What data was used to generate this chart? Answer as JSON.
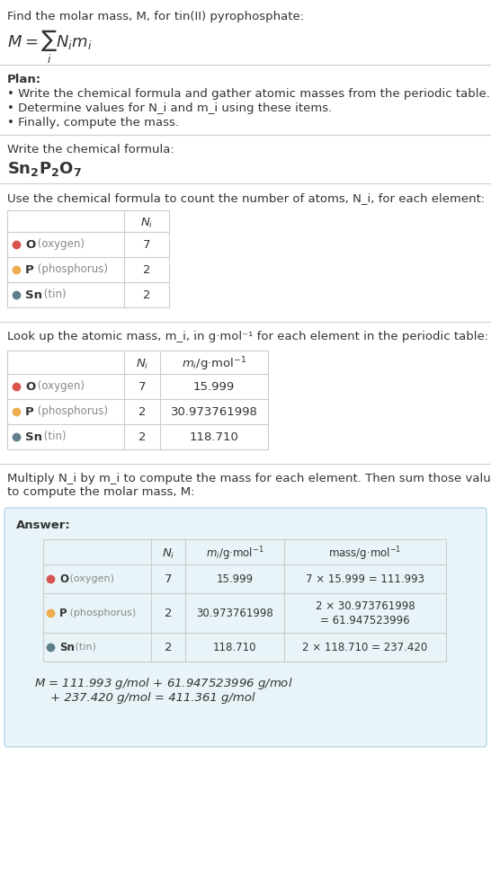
{
  "title_line": "Find the molar mass, M, for tin(II) pyrophosphate:",
  "formula_display": "M = ∑ N_i m_i",
  "formula_subscript": "i",
  "plan_header": "Plan:",
  "plan_bullets": [
    "• Write the chemical formula and gather atomic masses from the periodic table.",
    "• Determine values for N_i and m_i using these items.",
    "• Finally, compute the mass."
  ],
  "formula_section_header": "Write the chemical formula:",
  "chemical_formula": "Sn₂P₂O₇",
  "table1_header": "Use the chemical formula to count the number of atoms, N_i, for each element:",
  "table1_cols": [
    "",
    "N_i"
  ],
  "table1_rows": [
    [
      "O (oxygen)",
      "7"
    ],
    [
      "P (phosphorus)",
      "2"
    ],
    [
      "Sn (tin)",
      "2"
    ]
  ],
  "table2_header": "Look up the atomic mass, m_i, in g·mol⁻¹ for each element in the periodic table:",
  "table2_cols": [
    "",
    "N_i",
    "m_i/g·mol⁻¹"
  ],
  "table2_rows": [
    [
      "O (oxygen)",
      "7",
      "15.999"
    ],
    [
      "P (phosphorus)",
      "2",
      "30.973761998"
    ],
    [
      "Sn (tin)",
      "2",
      "118.710"
    ]
  ],
  "answer_header": "Multiply N_i by m_i to compute the mass for each element. Then sum those values\nto compute the molar mass, M:",
  "answer_label": "Answer:",
  "answer_table_cols": [
    "",
    "N_i",
    "m_i/g·mol⁻¹",
    "mass/g·mol⁻¹"
  ],
  "answer_table_rows": [
    [
      "O (oxygen)",
      "7",
      "15.999",
      "7 × 15.999 = 111.993"
    ],
    [
      "P (phosphorus)",
      "2",
      "30.973761998",
      "2 × 30.973761998\n= 61.947523996"
    ],
    [
      "Sn (tin)",
      "2",
      "118.710",
      "2 × 118.710 = 237.420"
    ]
  ],
  "final_eq_line1": "M = 111.993 g/mol + 61.947523996 g/mol",
  "final_eq_line2": "+ 237.420 g/mol = 411.361 g/mol",
  "element_colors": [
    "#d9534f",
    "#f0ad4e",
    "#5f7f8a"
  ],
  "answer_bg": "#e8f4f8",
  "answer_border": "#b8d8e8",
  "table_border": "#cccccc",
  "text_color": "#333333",
  "light_text": "#888888",
  "bg_color": "#ffffff"
}
